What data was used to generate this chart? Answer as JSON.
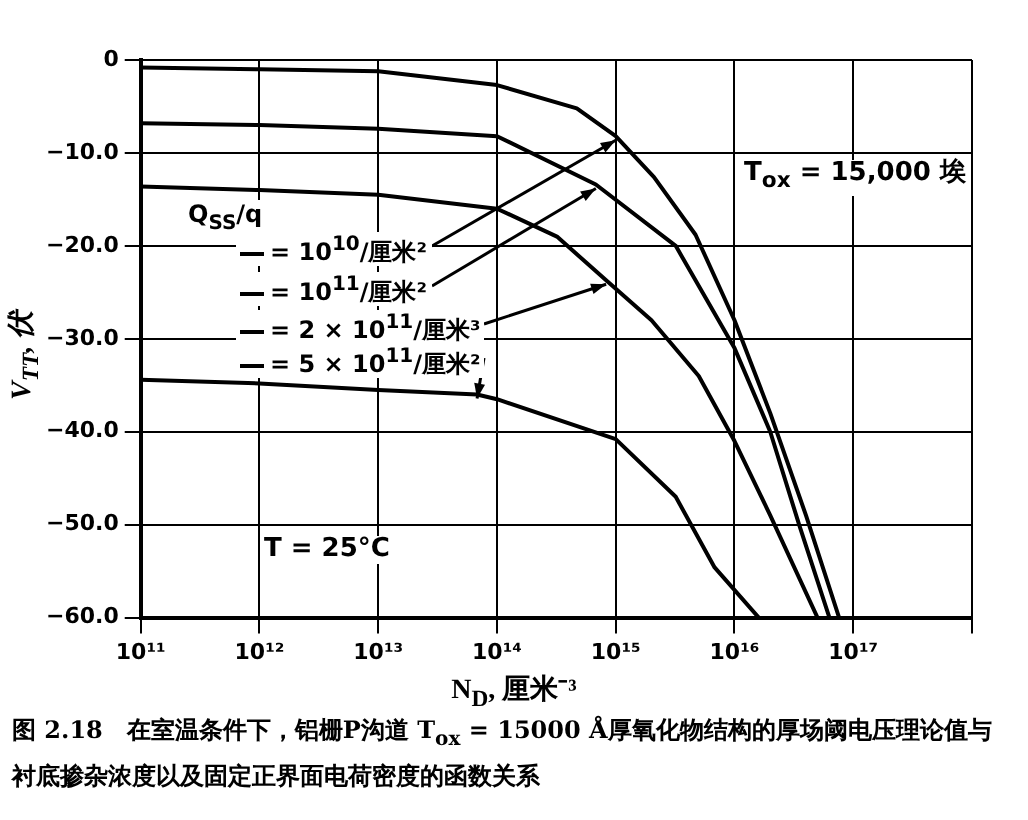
{
  "chart_data": {
    "type": "line",
    "xlabel": "N$_{D}$, 厘米⁻³",
    "ylabel": "V$_{TT}$, 伏",
    "log": "x",
    "grid": true,
    "legend": "center",
    "marker": "none",
    "line_style": "solid",
    "xlim": [
      100000000000.0,
      1e+18
    ],
    "xticks": [
      {
        "value": 100000000000.0,
        "label": "10¹¹"
      },
      {
        "value": 1000000000000.0,
        "label": "10¹²"
      },
      {
        "value": 10000000000000.0,
        "label": "10¹³"
      },
      {
        "value": 100000000000000.0,
        "label": "10¹⁴"
      },
      {
        "value": 1000000000000000.0,
        "label": "10¹⁵"
      },
      {
        "value": 1e+16,
        "label": "10¹⁶"
      },
      {
        "value": 1e+17,
        "label": "10¹⁷"
      },
      {
        "value": 1e+18,
        "label": null
      }
    ],
    "ylim": [
      -60,
      0
    ],
    "yticks": [
      {
        "value": 0,
        "label": "0"
      },
      {
        "value": -10,
        "label": "−10.0"
      },
      {
        "value": -20,
        "label": "−20.0"
      },
      {
        "value": -30,
        "label": "−30.0"
      },
      {
        "value": -40,
        "label": "−40.0"
      },
      {
        "value": -50,
        "label": "−50.0"
      },
      {
        "value": -60,
        "label": "−60.0"
      }
    ],
    "series": [
      {
        "name": "= 10$^{10}$/厘米²",
        "color": "#000000",
        "x": [
          100000000000.0,
          1000000000000.0,
          10000000000000.0,
          100000000000000.0,
          470000000000000.0,
          1000000000000000.0,
          2100000000000000.0,
          4700000000000000.0,
          1e+16,
          2e+16,
          4e+16,
          7.6e+16
        ],
        "values": [
          -0.8,
          -1,
          -1.2,
          -2.7,
          -5.2,
          -8.2,
          -12.6,
          -18.8,
          -28,
          -38,
          -49,
          -60
        ]
      },
      {
        "name": "= 10$^{11}$/厘米²",
        "color": "#000000",
        "x": [
          100000000000.0,
          1000000000000.0,
          10000000000000.0,
          100000000000000.0,
          680000000000000.0,
          3200000000000000.0,
          1e+16,
          2e+16,
          3.5e+16,
          6.3e+16
        ],
        "values": [
          -6.8,
          -7,
          -7.4,
          -8.2,
          -13.4,
          -20,
          -31,
          -40,
          -50,
          -60
        ]
      },
      {
        "name": "= 2 × 10$^{11}$/厘米³",
        "color": "#000000",
        "x": [
          100000000000.0,
          1000000000000.0,
          10000000000000.0,
          100000000000000.0,
          320000000000000.0,
          830000000000000.0,
          2000000000000000.0,
          5000000000000000.0,
          1e+16,
          2e+16,
          5e+16
        ],
        "values": [
          -13.6,
          -14,
          -14.5,
          -16,
          -19,
          -23.7,
          -28,
          -34,
          -41,
          -49,
          -60
        ]
      },
      {
        "name": "= 5 × 10$^{11}$/厘米²",
        "color": "#000000",
        "x": [
          100000000000.0,
          1000000000000.0,
          10000000000000.0,
          68000000000000.0,
          100000000000000.0,
          1000000000000000.0,
          3200000000000000.0,
          6800000000000000.0,
          1.6e+16
        ],
        "values": [
          -34.4,
          -34.8,
          -35.5,
          -36,
          -36.5,
          -40.8,
          -47,
          -54.6,
          -60
        ]
      }
    ],
    "annotations": [
      "Q$_{SS}$/q",
      "T$_{ox}$ = 15,000 埃",
      "T = 25°C",
      "图 2.18　在室温条件下，铝栅P沟道 T$_{ox}$ = 15000 Å厚氧化物结构的厚场阈电压理论值与衬底掺杂浓度以及固定正界面电荷密度的函数关系"
    ]
  }
}
